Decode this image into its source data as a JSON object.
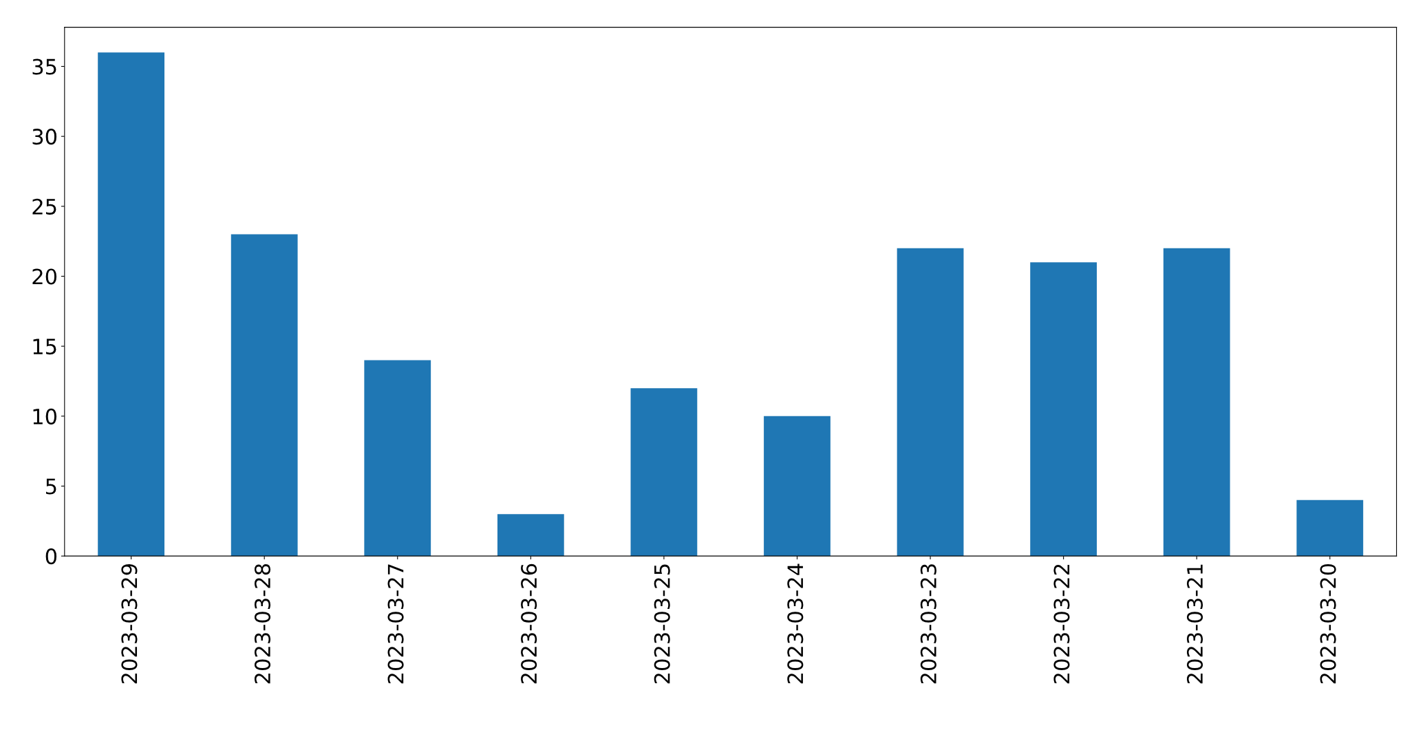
{
  "chart_data": {
    "type": "bar",
    "categories": [
      "2023-03-29",
      "2023-03-28",
      "2023-03-27",
      "2023-03-26",
      "2023-03-25",
      "2023-03-24",
      "2023-03-23",
      "2023-03-22",
      "2023-03-21",
      "2023-03-20"
    ],
    "values": [
      36,
      23,
      14,
      3,
      12,
      10,
      22,
      21,
      22,
      4
    ],
    "color": "#1f77b4",
    "ylim": [
      0,
      37.8
    ],
    "yticks": [
      0,
      5,
      10,
      15,
      20,
      25,
      30,
      35
    ],
    "grid": false,
    "legend": false
  }
}
